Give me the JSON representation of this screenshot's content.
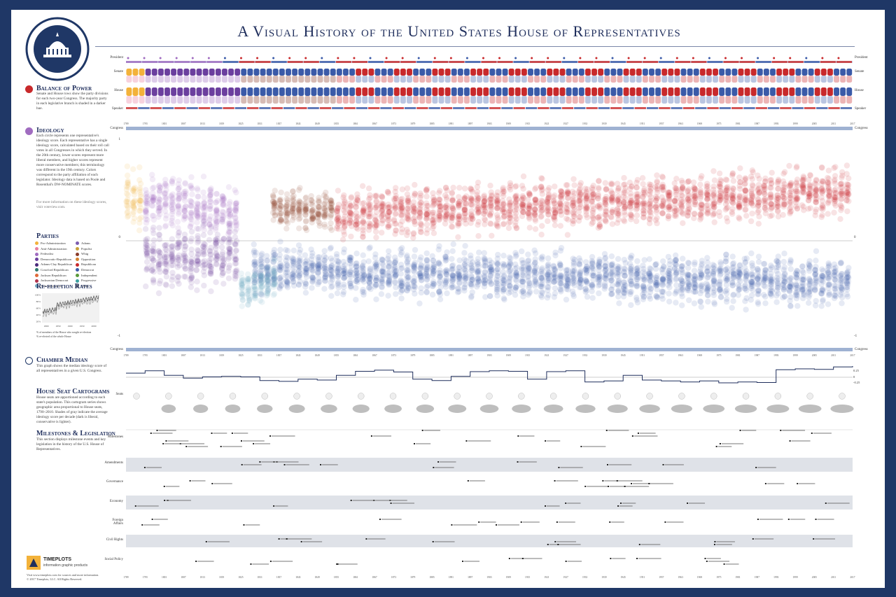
{
  "page": {
    "title": "A Visual History of the United States House of Representatives",
    "seal_text": "United States House of Representatives"
  },
  "rows": {
    "president": "President",
    "senate": "Senate",
    "house": "House",
    "speaker": "Speaker",
    "congress": "Congress",
    "seats": "Seats",
    "milestones": "Milestones",
    "amendments": "Amendments",
    "governance": "Governance",
    "economy": "Economy",
    "foreign": "Foreign Affairs",
    "civil": "Civil Rights",
    "social": "Social Policy"
  },
  "sidebar": {
    "balance": {
      "heading": "Balance of Power",
      "text": "Senate and House rows show the party divisions for each two-year Congress. The majority party in each legislative branch is shaded in a darker hue."
    },
    "ideology": {
      "heading": "Ideology",
      "text": "Each circle represents one representative's ideology score. Each representative has a single ideology score, calculated based on their roll call votes in all Congresses in which they served. In the 20th century, lower scores represent more liberal members, and higher scores represent more conservative members; this terminology was different in the 19th century. Colors correspond to the party affiliation of each legislator. Ideology data is based on Poole and Rosenthal's DW-NOMINATE scores.",
      "note": "For more information on these ideology scores, visit voteview.com."
    },
    "parties": {
      "heading": "Parties",
      "left": [
        {
          "name": "Pro-Administration",
          "color": "#f3b23a"
        },
        {
          "name": "Anti-Administration",
          "color": "#e87fa0"
        },
        {
          "name": "Federalist",
          "color": "#a06cc0"
        },
        {
          "name": "Democratic-Republican",
          "color": "#6b3f9e"
        },
        {
          "name": "Adams-Clay Republican",
          "color": "#4a2a7a"
        },
        {
          "name": "Crawford Republican",
          "color": "#2f7a6e"
        },
        {
          "name": "Jackson Republican",
          "color": "#e06a3a"
        },
        {
          "name": "Jacksonian Democrat",
          "color": "#b0344d"
        },
        {
          "name": "Anti-Jacksonian",
          "color": "#6fa7c0"
        }
      ],
      "right": [
        {
          "name": "Adams",
          "color": "#7c5cb0"
        },
        {
          "name": "Populist",
          "color": "#c9a13b"
        },
        {
          "name": "Whig",
          "color": "#8a3b2a"
        },
        {
          "name": "Opposition",
          "color": "#d4822f"
        },
        {
          "name": "Republican",
          "color": "#c8292b"
        },
        {
          "name": "Democrat",
          "color": "#3a5aa8"
        },
        {
          "name": "Independent",
          "color": "#5a9a3a"
        },
        {
          "name": "Progressive",
          "color": "#3aa0a0"
        },
        {
          "name": "Other",
          "color": "#888888"
        }
      ]
    },
    "reelection": {
      "heading": "Re-election Rates",
      "ticks_y": [
        "100%",
        "80%",
        "60%",
        "40%",
        "20%"
      ],
      "ticks_x": [
        "1800",
        "1850",
        "1900",
        "1950",
        "2000"
      ],
      "note1": "% of members of the House who sought re-election",
      "note2": "% re-elected of the whole House"
    },
    "median": {
      "heading": "Chamber Median",
      "text": "This graph shows the median ideology score of all representatives in a given U.S. Congress."
    },
    "cartograms": {
      "heading": "House Seat Cartograms",
      "text": "House seats are apportioned according to each state's population. This cartogram series shows geographic area proportional to House seats, 1790–2010. Shades of gray indicate the average ideology score per decade (dark is liberal, conservative is lighter)."
    },
    "milestones": {
      "heading": "Milestones & Legislation",
      "text": "This section displays milestone events and key legislation in the history of the U.S. House of Representatives."
    }
  },
  "axes": {
    "ideology_top": "1",
    "ideology_mid": "0",
    "ideology_bot": "-1",
    "median_ticks": [
      "0.25",
      "0",
      "-0.25"
    ]
  },
  "footer": {
    "brand": "TIMEPLOTS",
    "tagline": "information graphic products",
    "web": "Visit www.timeplots.com for sources and more information.",
    "copyright": "© 2017 Timeplots, LLC. All Rights Reserved."
  },
  "chart_data": {
    "type": "scatter",
    "title": "A Visual History of the United States House of Representatives",
    "x_range": [
      1789,
      2017
    ],
    "ylim": [
      -1,
      1
    ],
    "x_ticks": [
      "1789",
      "1795",
      "1801",
      "1807",
      "1813",
      "1819",
      "1825",
      "1831",
      "1837",
      "1843",
      "1849",
      "1855",
      "1861",
      "1867",
      "1873",
      "1879",
      "1885",
      "1891",
      "1897",
      "1903",
      "1909",
      "1915",
      "1921",
      "1927",
      "1933",
      "1939",
      "1945",
      "1951",
      "1957",
      "1963",
      "1969",
      "1975",
      "1981",
      "1987",
      "1993",
      "1999",
      "2005",
      "2011",
      "2017"
    ],
    "series": [
      {
        "name": "Republican",
        "color": "#c8292b",
        "start": 1855,
        "end": 2017,
        "center_start": 0.28,
        "center_end": 0.5,
        "spread": 0.16
      },
      {
        "name": "Democrat",
        "color": "#3a5aa8",
        "start": 1829,
        "end": 2017,
        "center_start": -0.3,
        "center_end": -0.42,
        "spread": 0.16
      },
      {
        "name": "Federalist",
        "color": "#a06cc0",
        "start": 1795,
        "end": 1825,
        "center_start": 0.4,
        "center_end": 0.3,
        "spread": 0.18
      },
      {
        "name": "Democratic-Republican",
        "color": "#6b3f9e",
        "start": 1795,
        "end": 1825,
        "center_start": -0.2,
        "center_end": -0.15,
        "spread": 0.2
      },
      {
        "name": "Pro-Administration",
        "color": "#f3b23a",
        "start": 1789,
        "end": 1795,
        "center_start": 0.45,
        "center_end": 0.4,
        "spread": 0.2
      },
      {
        "name": "Whig",
        "color": "#8a3b2a",
        "start": 1835,
        "end": 1855,
        "center_start": 0.35,
        "center_end": 0.3,
        "spread": 0.12
      },
      {
        "name": "Anti-Jacksonian",
        "color": "#6fa7c0",
        "start": 1825,
        "end": 1837,
        "center_start": -0.5,
        "center_end": -0.4,
        "spread": 0.12
      }
    ],
    "chamber_median": {
      "x": [
        1789,
        1795,
        1801,
        1807,
        1813,
        1819,
        1825,
        1831,
        1837,
        1843,
        1849,
        1855,
        1861,
        1867,
        1873,
        1879,
        1885,
        1891,
        1897,
        1903,
        1909,
        1915,
        1921,
        1927,
        1933,
        1939,
        1945,
        1951,
        1957,
        1963,
        1969,
        1975,
        1981,
        1987,
        1993,
        1999,
        2005,
        2011,
        2017
      ],
      "y": [
        0.22,
        0.35,
        0.1,
        -0.05,
        0.02,
        0.05,
        0.02,
        -0.18,
        -0.22,
        -0.1,
        -0.15,
        0.1,
        0.32,
        0.38,
        0.28,
        -0.1,
        -0.18,
        0.05,
        0.3,
        0.35,
        0.32,
        -0.1,
        0.3,
        0.35,
        -0.25,
        -0.2,
        0.1,
        -0.15,
        -0.2,
        -0.25,
        -0.2,
        -0.3,
        -0.25,
        -0.28,
        0.4,
        0.45,
        0.42,
        0.55,
        0.6
      ]
    }
  }
}
